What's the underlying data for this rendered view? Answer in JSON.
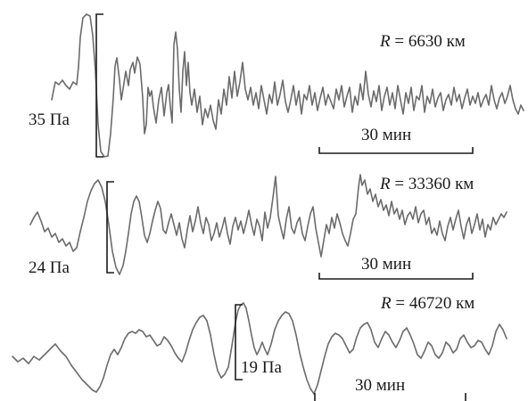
{
  "chart_data": [
    {
      "type": "line",
      "range_label": {
        "var": "R",
        "rest": " = 6630 км"
      },
      "amplitude_label": "35 Па",
      "time_scale_label": "30 мин"
    },
    {
      "type": "line",
      "range_label": {
        "var": "R",
        "rest": " = 33360 км"
      },
      "amplitude_label": "24 Па",
      "time_scale_label": "30 мин"
    },
    {
      "type": "line",
      "range_label": {
        "var": "R",
        "rest": " = 46720 км"
      },
      "amplitude_label": "19 Па",
      "time_scale_label": "30 мин"
    }
  ]
}
